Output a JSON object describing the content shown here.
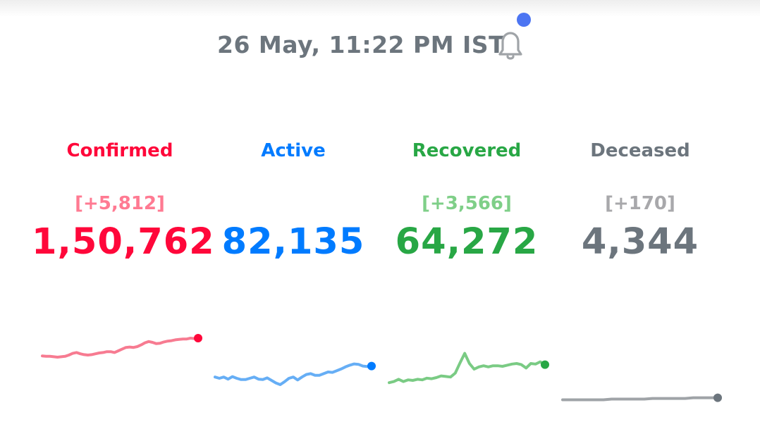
{
  "header": {
    "timestamp": "26 May, 11:22 PM IST",
    "notification_icon": "bell-icon",
    "notification_dot_color": "#4c75f2"
  },
  "stats": [
    {
      "key": "confirmed",
      "label": "Confirmed",
      "delta": "[+5,812]",
      "total": "1,50,762",
      "color": "#ff073a",
      "delta_color": "#ff7a92",
      "sparkline_color": "#f77b91",
      "sparkline": [
        0.58,
        0.57,
        0.57,
        0.56,
        0.55,
        0.56,
        0.57,
        0.6,
        0.64,
        0.66,
        0.63,
        0.61,
        0.6,
        0.61,
        0.63,
        0.65,
        0.66,
        0.68,
        0.68,
        0.66,
        0.7,
        0.74,
        0.78,
        0.79,
        0.78,
        0.8,
        0.84,
        0.89,
        0.92,
        0.9,
        0.87,
        0.88,
        0.91,
        0.93,
        0.94,
        0.96,
        0.97,
        0.98,
        0.98,
        1.0,
        0.99,
        1.0
      ]
    },
    {
      "key": "active",
      "label": "Active",
      "delta": "",
      "total": "82,135",
      "color": "#007bff",
      "delta_color": "#007bff",
      "sparkline_color": "#66aef5",
      "sparkline": [
        0.58,
        0.55,
        0.58,
        0.53,
        0.59,
        0.55,
        0.52,
        0.52,
        0.55,
        0.58,
        0.53,
        0.52,
        0.56,
        0.5,
        0.44,
        0.4,
        0.47,
        0.55,
        0.58,
        0.51,
        0.58,
        0.64,
        0.66,
        0.62,
        0.62,
        0.66,
        0.7,
        0.69,
        0.73,
        0.77,
        0.82,
        0.86,
        0.89,
        0.88,
        0.84,
        0.83,
        0.84
      ]
    },
    {
      "key": "recovered",
      "label": "Recovered",
      "delta": "[+3,566]",
      "total": "64,272",
      "color": "#28a745",
      "delta_color": "#7fcf88",
      "sparkline_color": "#7acb84",
      "sparkline": [
        0.46,
        0.48,
        0.52,
        0.48,
        0.51,
        0.5,
        0.52,
        0.51,
        0.54,
        0.53,
        0.55,
        0.58,
        0.57,
        0.56,
        0.63,
        0.81,
        0.98,
        0.8,
        0.7,
        0.74,
        0.76,
        0.74,
        0.76,
        0.76,
        0.75,
        0.77,
        0.79,
        0.8,
        0.78,
        0.72,
        0.8,
        0.79,
        0.83,
        0.78
      ]
    },
    {
      "key": "deceased",
      "label": "Deceased",
      "delta": "[+170]",
      "total": "4,344",
      "color": "#6c757d",
      "delta_color": "#a8a8ab",
      "sparkline_color": "#9fa3a7",
      "sparkline": [
        0.5,
        0.5,
        0.5,
        0.5,
        0.5,
        0.5,
        0.51,
        0.51,
        0.51,
        0.51,
        0.51,
        0.52,
        0.52,
        0.52,
        0.52,
        0.52,
        0.53,
        0.53,
        0.53,
        0.53
      ]
    }
  ]
}
